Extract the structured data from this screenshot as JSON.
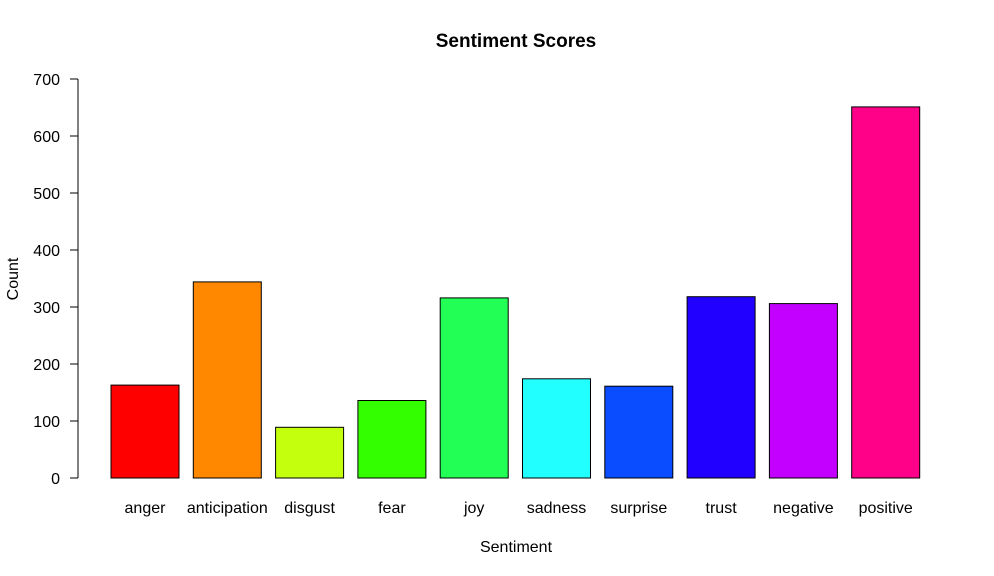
{
  "chart_data": {
    "type": "bar",
    "title": "Sentiment Scores",
    "xlabel": "Sentiment",
    "ylabel": "Count",
    "ylim": [
      0,
      700
    ],
    "yticks": [
      0,
      100,
      200,
      300,
      400,
      500,
      600,
      700
    ],
    "grid": false,
    "legend": "none",
    "categories": [
      "anger",
      "anticipation",
      "disgust",
      "fear",
      "joy",
      "sadness",
      "surprise",
      "trust",
      "negative",
      "positive"
    ],
    "values": [
      163,
      344,
      89,
      136,
      316,
      174,
      161,
      318,
      306,
      651
    ],
    "colors": [
      "#ff0000",
      "#ff8800",
      "#c4ff0e",
      "#33ff00",
      "#22ff55",
      "#22ffff",
      "#0a4cff",
      "#2200ff",
      "#c300ff",
      "#ff0088"
    ]
  }
}
